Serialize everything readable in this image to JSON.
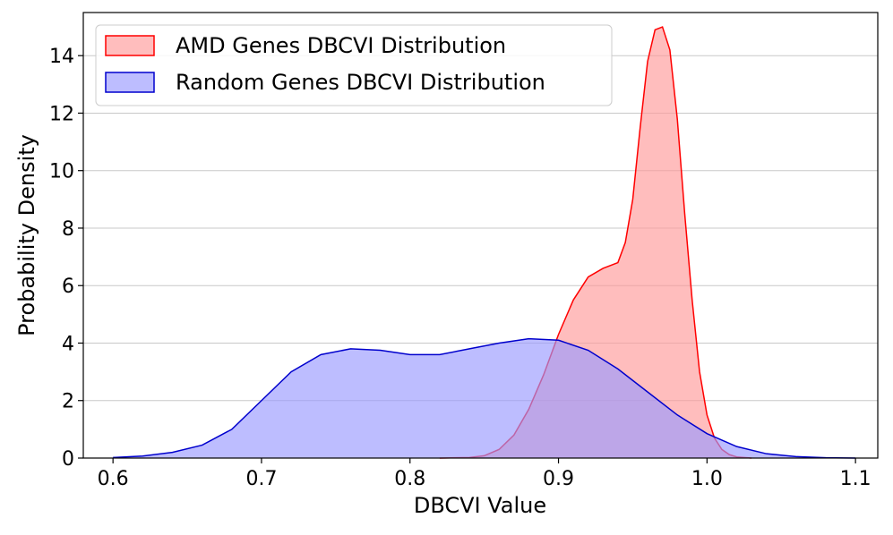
{
  "chart_data": {
    "type": "area",
    "title": "",
    "xlabel": "DBCVI Value",
    "ylabel": "Probability Density",
    "xlim": [
      0.58,
      1.115
    ],
    "ylim": [
      0,
      15.5
    ],
    "grid": "y",
    "legend_position": "top-left",
    "x_ticks": [
      0.6,
      0.7,
      0.8,
      0.9,
      1.0,
      1.1
    ],
    "x_tick_labels": [
      "0.6",
      "0.7",
      "0.8",
      "0.9",
      "1.0",
      "1.1"
    ],
    "y_ticks": [
      0,
      2,
      4,
      6,
      8,
      10,
      12,
      14
    ],
    "y_tick_labels": [
      "0",
      "2",
      "4",
      "6",
      "8",
      "10",
      "12",
      "14"
    ],
    "series": [
      {
        "name": "AMD Genes DBCVI Distribution",
        "color": "#ff0000",
        "fill": "#ff9a9a",
        "x": [
          0.82,
          0.84,
          0.85,
          0.86,
          0.87,
          0.88,
          0.89,
          0.9,
          0.91,
          0.92,
          0.93,
          0.94,
          0.945,
          0.95,
          0.955,
          0.96,
          0.965,
          0.97,
          0.975,
          0.98,
          0.985,
          0.99,
          0.995,
          1.0,
          1.005,
          1.01,
          1.015,
          1.02,
          1.03
        ],
        "y": [
          0.0,
          0.02,
          0.08,
          0.3,
          0.8,
          1.7,
          2.9,
          4.3,
          5.5,
          6.3,
          6.6,
          6.8,
          7.5,
          9.0,
          11.5,
          13.8,
          14.9,
          15.0,
          14.2,
          11.8,
          8.5,
          5.5,
          3.0,
          1.5,
          0.7,
          0.3,
          0.12,
          0.04,
          0.0
        ]
      },
      {
        "name": "Random Genes DBCVI Distribution",
        "color": "#0000cd",
        "fill": "#9a9aff",
        "x": [
          0.6,
          0.62,
          0.64,
          0.66,
          0.68,
          0.7,
          0.72,
          0.74,
          0.76,
          0.78,
          0.8,
          0.82,
          0.84,
          0.86,
          0.88,
          0.9,
          0.92,
          0.94,
          0.96,
          0.98,
          1.0,
          1.02,
          1.04,
          1.06,
          1.08,
          1.1
        ],
        "y": [
          0.02,
          0.07,
          0.2,
          0.45,
          1.0,
          2.0,
          3.0,
          3.6,
          3.8,
          3.75,
          3.6,
          3.6,
          3.8,
          4.0,
          4.15,
          4.1,
          3.75,
          3.1,
          2.3,
          1.5,
          0.85,
          0.4,
          0.15,
          0.05,
          0.01,
          0.0
        ]
      }
    ]
  }
}
